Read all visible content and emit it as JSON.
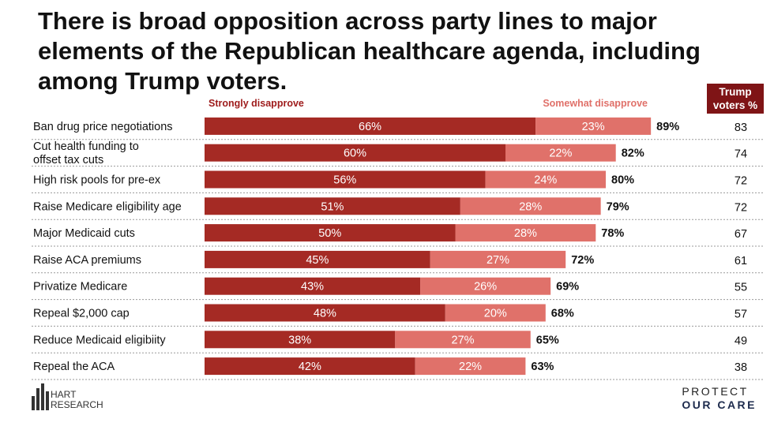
{
  "title": "There is broad opposition across party lines to major elements of the Republican healthcare agenda, including among Trump voters.",
  "colors": {
    "strongly": "#a52a24",
    "somewhat": "#e0716a",
    "trump_header": "#7f1416",
    "legend_strongly": "#9e1b1b",
    "legend_somewhat": "#e0716a"
  },
  "legend": {
    "strongly": "Strongly disapprove",
    "somewhat": "Somewhat disapprove"
  },
  "trump_header": "Trump\nvoters %",
  "chart_data": {
    "type": "bar",
    "orientation": "horizontal",
    "stacked": true,
    "categories": [
      "Ban drug price negotiations",
      "Cut health funding to offset tax cuts",
      "High risk pools for pre-ex",
      "Raise Medicare eligibility age",
      "Major Medicaid cuts",
      "Raise ACA premiums",
      "Privatize Medicare",
      "Repeal $2,000 cap",
      "Reduce Medicaid eligibiity",
      "Repeal the ACA"
    ],
    "category_lines": [
      [
        "Ban drug price negotiations"
      ],
      [
        "Cut health funding to",
        "offset tax cuts"
      ],
      [
        "High risk pools for pre-ex"
      ],
      [
        "Raise Medicare eligibility age"
      ],
      [
        "Major Medicaid cuts"
      ],
      [
        "Raise ACA premiums"
      ],
      [
        "Privatize Medicare"
      ],
      [
        "Repeal $2,000 cap"
      ],
      [
        "Reduce Medicaid eligibiity"
      ],
      [
        "Repeal the ACA"
      ]
    ],
    "series": [
      {
        "name": "Strongly disapprove",
        "values": [
          66,
          60,
          56,
          51,
          50,
          45,
          43,
          48,
          38,
          42
        ]
      },
      {
        "name": "Somewhat disapprove",
        "values": [
          23,
          22,
          24,
          28,
          28,
          27,
          26,
          20,
          27,
          22
        ]
      }
    ],
    "totals": [
      89,
      82,
      80,
      79,
      78,
      72,
      69,
      68,
      65,
      63
    ],
    "trump_voters": [
      83,
      74,
      72,
      72,
      67,
      61,
      55,
      57,
      49,
      38
    ],
    "value_suffix": "%"
  },
  "logos": {
    "hart": "HART\nRESEARCH",
    "poc_line1": "PROTECT",
    "poc_line2": "OUR CARE"
  }
}
